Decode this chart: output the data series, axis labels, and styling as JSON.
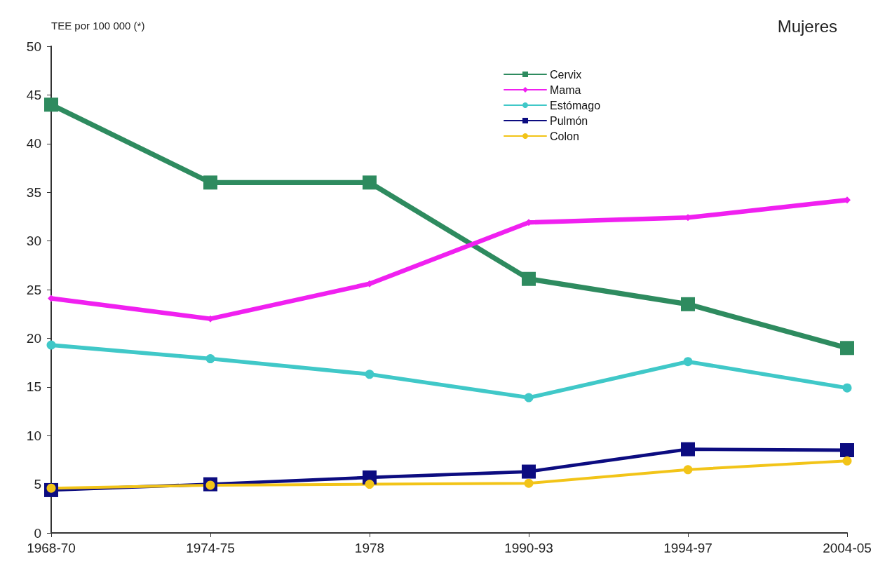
{
  "chart_data": {
    "type": "line",
    "title": "Mujeres",
    "ylabel": "TEE por 100 000 (*)",
    "categories": [
      "1968-70",
      "1974-75",
      "1978",
      "1990-93",
      "1994-97",
      "2004-05"
    ],
    "series": [
      {
        "name": "Cervix",
        "color": "#2e8b5f",
        "marker": "square",
        "values": [
          44,
          36,
          36,
          26.1,
          23.5,
          19
        ]
      },
      {
        "name": "Mama",
        "color": "#f020f0",
        "marker": "diamond",
        "values": [
          24.1,
          22,
          25.6,
          31.9,
          32.4,
          34.2
        ]
      },
      {
        "name": "Estómago",
        "color": "#40c8c8",
        "marker": "circle",
        "values": [
          19.3,
          17.9,
          16.3,
          13.9,
          17.6,
          14.9
        ]
      },
      {
        "name": "Pulmón",
        "color": "#0c0c80",
        "marker": "square",
        "values": [
          4.4,
          5,
          5.7,
          6.3,
          8.6,
          8.5
        ]
      },
      {
        "name": "Colon",
        "color": "#f2c418",
        "marker": "circle",
        "values": [
          4.6,
          4.9,
          5,
          5.1,
          6.5,
          7.4
        ]
      }
    ],
    "ylim": [
      0,
      50
    ],
    "yticks": [
      0,
      5,
      10,
      15,
      20,
      25,
      30,
      35,
      40,
      45,
      50
    ],
    "grid": false,
    "legend": "top",
    "line_style": "solid"
  }
}
